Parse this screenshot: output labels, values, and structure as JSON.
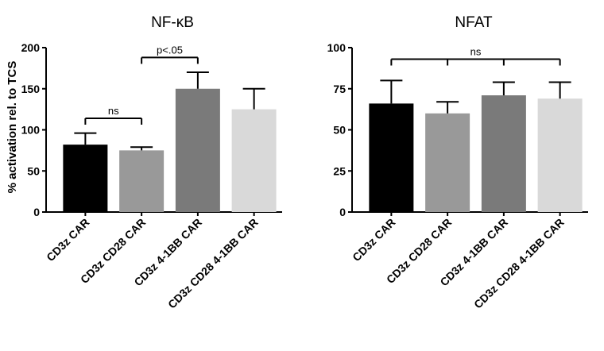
{
  "ylabel": "% activation rel. to TCS",
  "chart_data": [
    {
      "type": "bar",
      "title": "NF-κB",
      "ylabel": "% activation rel. to TCS",
      "categories": [
        "CD3z CAR",
        "CD3z CD28 CAR",
        "CD3z 4-1BB CAR",
        "CD3z CD28 4-1BB CAR"
      ],
      "values": [
        82,
        75,
        150,
        125
      ],
      "errors": [
        14,
        4,
        20,
        25
      ],
      "colors": [
        "#000000",
        "#999999",
        "#7a7a7a",
        "#d9d9d9"
      ],
      "ylim": [
        0,
        200
      ],
      "yticks": [
        "0",
        "50",
        "100",
        "150",
        "200"
      ],
      "annotations": [
        {
          "label": "ns",
          "from": 0,
          "to": 1,
          "level": 114
        },
        {
          "label": "p<.05",
          "from": 1,
          "to": 2,
          "level": 188
        }
      ]
    },
    {
      "type": "bar",
      "title": "NFAT",
      "ylabel": "",
      "categories": [
        "CD3z CAR",
        "CD3z CD28 CAR",
        "CD3z 4-1BB CAR",
        "CD3z CD28 4-1BB CAR"
      ],
      "values": [
        66,
        60,
        71,
        69
      ],
      "errors": [
        14,
        7,
        8,
        10
      ],
      "colors": [
        "#000000",
        "#999999",
        "#7a7a7a",
        "#d9d9d9"
      ],
      "ylim": [
        0,
        100
      ],
      "yticks": [
        "0",
        "25",
        "50",
        "75",
        "100"
      ],
      "annotations": [
        {
          "label": "ns",
          "from": 0,
          "to": 3,
          "level": 93
        }
      ]
    }
  ]
}
